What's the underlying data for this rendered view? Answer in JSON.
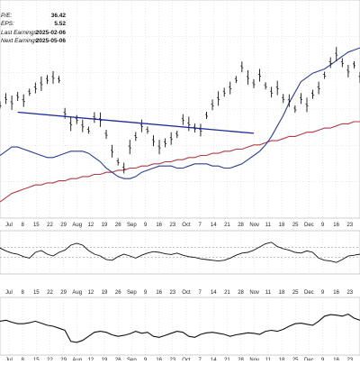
{
  "stats": [
    {
      "label": "P/E:",
      "value": "36.42"
    },
    {
      "label": "EPS:",
      "value": "5.52"
    },
    {
      "label": "Last Earnings:",
      "value": "2025-02-06"
    },
    {
      "label": "Next Earnings:",
      "value": "2025-05-06"
    }
  ],
  "colors": {
    "price": "#111111",
    "ma_short": "#2b3f8f",
    "ma_long": "#b03a48",
    "trendline": "#1c2a9a",
    "grid": "#d0d0d0",
    "indicator": "#111111"
  },
  "chart_data": {
    "type": "line",
    "grid": true,
    "x_ticks": [
      "Jul",
      "8",
      "15",
      "22",
      "29",
      "Aug",
      "12",
      "19",
      "26",
      "Sep",
      "9",
      "16",
      "23",
      "Oct",
      "7",
      "14",
      "21",
      "28",
      "Nov",
      "11",
      "18",
      "25",
      "Dec",
      "9",
      "16",
      "23",
      "20"
    ],
    "series": [
      {
        "values": [
          0.48,
          0.45,
          0.47,
          0.44,
          0.46,
          0.42,
          0.4,
          0.38,
          0.36,
          0.35,
          0.36,
          0.52,
          0.57,
          0.55,
          0.58,
          0.6,
          0.54,
          0.55,
          0.62,
          0.7,
          0.75,
          0.78,
          0.68,
          0.63,
          0.58,
          0.6,
          0.65,
          0.68,
          0.66,
          0.64,
          0.62,
          0.55,
          0.57,
          0.59,
          0.6,
          0.53,
          0.48,
          0.45,
          0.42,
          0.4,
          0.36,
          0.3,
          0.35,
          0.38,
          0.34,
          0.39,
          0.42,
          0.4,
          0.45,
          0.46,
          0.5,
          0.45,
          0.48,
          0.43,
          0.4,
          0.34,
          0.28,
          0.24,
          0.28,
          0.32,
          0.29,
          0.35
        ]
      },
      {
        "values": [
          0.72,
          0.7,
          0.68,
          0.68,
          0.69,
          0.7,
          0.71,
          0.72,
          0.73,
          0.73,
          0.72,
          0.71,
          0.7,
          0.7,
          0.7,
          0.71,
          0.73,
          0.75,
          0.78,
          0.8,
          0.82,
          0.83,
          0.83,
          0.82,
          0.8,
          0.79,
          0.78,
          0.77,
          0.77,
          0.77,
          0.78,
          0.78,
          0.77,
          0.76,
          0.76,
          0.76,
          0.77,
          0.77,
          0.78,
          0.78,
          0.77,
          0.76,
          0.74,
          0.72,
          0.7,
          0.67,
          0.63,
          0.58,
          0.53,
          0.47,
          0.42,
          0.37,
          0.35,
          0.33,
          0.32,
          0.31,
          0.29,
          0.27,
          0.25,
          0.23,
          0.22,
          0.21
        ]
      },
      {
        "values": [
          0.94,
          0.92,
          0.9,
          0.89,
          0.88,
          0.87,
          0.86,
          0.86,
          0.85,
          0.85,
          0.84,
          0.84,
          0.83,
          0.83,
          0.82,
          0.82,
          0.81,
          0.81,
          0.8,
          0.8,
          0.79,
          0.79,
          0.78,
          0.78,
          0.77,
          0.77,
          0.76,
          0.76,
          0.75,
          0.75,
          0.74,
          0.74,
          0.73,
          0.73,
          0.72,
          0.72,
          0.71,
          0.71,
          0.7,
          0.7,
          0.69,
          0.69,
          0.68,
          0.67,
          0.67,
          0.66,
          0.65,
          0.65,
          0.64,
          0.63,
          0.63,
          0.62,
          0.61,
          0.61,
          0.6,
          0.59,
          0.59,
          0.58,
          0.57,
          0.57,
          0.56,
          0.56
        ]
      },
      {
        "values": [
          0.38,
          0.46,
          0.52,
          0.55,
          0.62,
          0.66,
          0.5,
          0.45,
          0.55,
          0.6,
          0.5,
          0.44,
          0.3,
          0.25,
          0.3,
          0.45,
          0.55,
          0.6,
          0.7,
          0.72,
          0.62,
          0.55,
          0.6,
          0.66,
          0.58,
          0.52,
          0.48,
          0.5,
          0.54,
          0.56,
          0.52,
          0.58,
          0.62,
          0.64,
          0.68,
          0.7,
          0.72,
          0.74,
          0.72,
          0.66,
          0.58,
          0.52,
          0.5,
          0.44,
          0.35,
          0.26,
          0.22,
          0.34,
          0.4,
          0.44,
          0.5,
          0.52,
          0.46,
          0.5,
          0.66,
          0.72,
          0.74,
          0.78,
          0.7,
          0.6,
          0.58,
          0.55
        ]
      },
      {
        "values": [
          0.6,
          0.62,
          0.58,
          0.55,
          0.55,
          0.57,
          0.6,
          0.56,
          0.52,
          0.5,
          0.46,
          0.42,
          0.2,
          0.18,
          0.22,
          0.3,
          0.38,
          0.4,
          0.38,
          0.33,
          0.3,
          0.32,
          0.35,
          0.4,
          0.36,
          0.38,
          0.3,
          0.28,
          0.32,
          0.36,
          0.4,
          0.38,
          0.3,
          0.28,
          0.34,
          0.37,
          0.38,
          0.36,
          0.34,
          0.3,
          0.33,
          0.35,
          0.37,
          0.36,
          0.34,
          0.4,
          0.42,
          0.4,
          0.44,
          0.5,
          0.55,
          0.56,
          0.54,
          0.52,
          0.6,
          0.7,
          0.73,
          0.72,
          0.7,
          0.74,
          0.66,
          0.62
        ]
      }
    ]
  }
}
